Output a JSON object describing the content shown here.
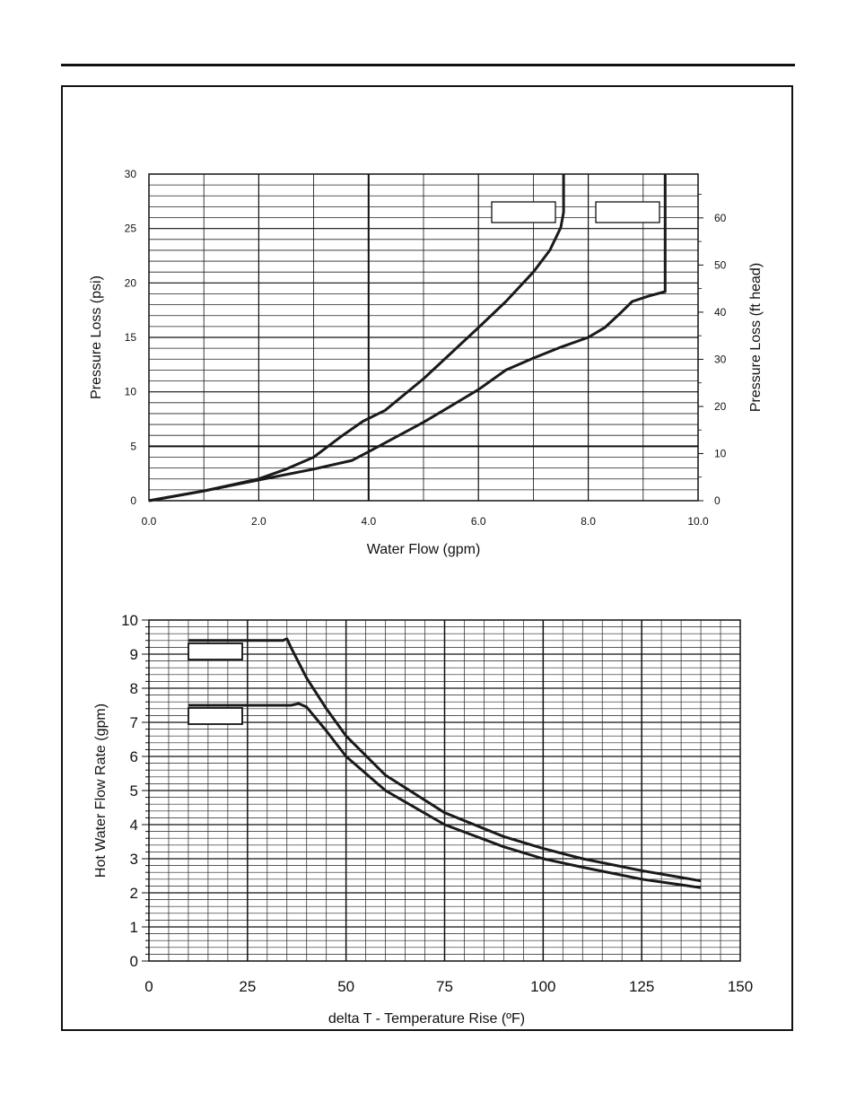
{
  "chart_data": [
    {
      "type": "line",
      "xlabel": "Water Flow (gpm)",
      "ylabel": "Pressure Loss (psi)",
      "y2label": "Pressure Loss (ft head)",
      "xlim": [
        0,
        10
      ],
      "ylim": [
        0,
        30
      ],
      "y2lim": [
        0,
        69.3
      ],
      "x_ticks": [
        "0.0",
        "2.0",
        "4.0",
        "6.0",
        "8.0",
        "10.0"
      ],
      "y_ticks": [
        "0",
        "5",
        "10",
        "15",
        "20",
        "25",
        "30"
      ],
      "y2_ticks": [
        "0",
        "10",
        "20",
        "30",
        "40",
        "50",
        "60"
      ],
      "grid": "on",
      "series": [
        {
          "label_box": "",
          "points": [
            [
              0,
              0
            ],
            [
              1,
              0.9
            ],
            [
              2,
              2.0
            ],
            [
              2.5,
              2.9
            ],
            [
              3,
              4.0
            ],
            [
              3.5,
              5.9
            ],
            [
              3.9,
              7.3
            ],
            [
              4.3,
              8.3
            ],
            [
              5,
              11.2
            ],
            [
              6,
              15.9
            ],
            [
              6.5,
              18.3
            ],
            [
              7,
              21.0
            ],
            [
              7.3,
              23.0
            ],
            [
              7.5,
              25.1
            ],
            [
              7.55,
              26.5
            ],
            [
              7.55,
              30
            ]
          ]
        },
        {
          "label_box": "",
          "points": [
            [
              0,
              0
            ],
            [
              1,
              0.9
            ],
            [
              2,
              1.9
            ],
            [
              3,
              2.9
            ],
            [
              3.7,
              3.7
            ],
            [
              4,
              4.5
            ],
            [
              5,
              7.2
            ],
            [
              6,
              10.2
            ],
            [
              6.5,
              12.0
            ],
            [
              7,
              13.1
            ],
            [
              7.5,
              14.1
            ],
            [
              8,
              15.0
            ],
            [
              8.3,
              15.9
            ],
            [
              8.6,
              17.3
            ],
            [
              8.8,
              18.3
            ],
            [
              9.1,
              18.8
            ],
            [
              9.4,
              19.2
            ],
            [
              9.4,
              30
            ]
          ]
        }
      ]
    },
    {
      "type": "line",
      "xlabel": "delta T - Temperature Rise (ºF)",
      "ylabel": "Hot Water Flow Rate (gpm)",
      "xlim": [
        0,
        150
      ],
      "ylim": [
        0,
        10
      ],
      "x_ticks": [
        "0",
        "25",
        "50",
        "75",
        "100",
        "125",
        "150"
      ],
      "y_ticks": [
        "0",
        "1",
        "2",
        "3",
        "4",
        "5",
        "6",
        "7",
        "8",
        "9",
        "10"
      ],
      "grid": "on",
      "series": [
        {
          "label_box": "",
          "points": [
            [
              10,
              9.4
            ],
            [
              34,
              9.4
            ],
            [
              35,
              9.45
            ],
            [
              36,
              9.2
            ],
            [
              40,
              8.3
            ],
            [
              45,
              7.4
            ],
            [
              50,
              6.6
            ],
            [
              60,
              5.45
            ],
            [
              75,
              4.35
            ],
            [
              90,
              3.65
            ],
            [
              100,
              3.3
            ],
            [
              110,
              3.0
            ],
            [
              125,
              2.65
            ],
            [
              140,
              2.35
            ]
          ]
        },
        {
          "label_box": "",
          "points": [
            [
              10,
              7.5
            ],
            [
              36,
              7.5
            ],
            [
              38,
              7.55
            ],
            [
              40,
              7.45
            ],
            [
              45,
              6.75
            ],
            [
              50,
              6.0
            ],
            [
              60,
              5.0
            ],
            [
              75,
              4.0
            ],
            [
              90,
              3.35
            ],
            [
              100,
              3.0
            ],
            [
              110,
              2.75
            ],
            [
              125,
              2.4
            ],
            [
              140,
              2.15
            ]
          ]
        }
      ]
    }
  ]
}
